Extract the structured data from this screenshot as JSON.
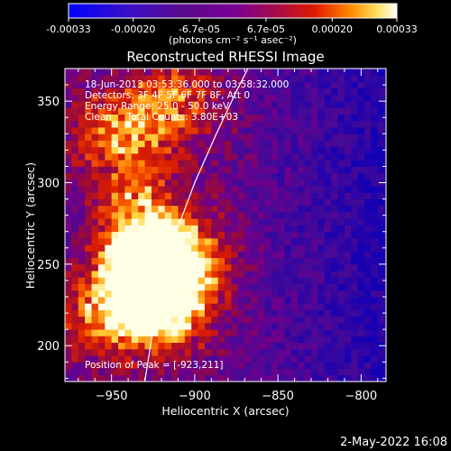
{
  "colorbar": {
    "ticks": [
      "-0.00033",
      "-0.00020",
      "-6.7e-05",
      "6.7e-05",
      "0.00020",
      "0.00033"
    ],
    "ticks_values": [
      -0.00033,
      -0.0002,
      -6.7e-05,
      6.7e-05,
      0.0002,
      0.00033
    ],
    "range": [
      -0.00033,
      0.00033
    ],
    "unit_label": "(photons cm⁻² s⁻¹ asec⁻²)",
    "colors": [
      "#0000ff",
      "#5a0a8c",
      "#780096",
      "#cc1a0a",
      "#ff6a00",
      "#ffd040",
      "#ffffff"
    ]
  },
  "header": {
    "title": "Reconstructed RHESSI Image",
    "date_footer": "2-May-2022 16:08"
  },
  "annotations": {
    "time_range": "18-Jun-2013 03:53:36.000 to 03:58:32.000",
    "detectors": "Detectors: 3F 4F 5F 6F 7F 8F, Att 0",
    "energy": "Energy Range: 25.0 - 50.0 keV",
    "clean": "Clean     Total Counts: 3.80E+03",
    "peak": "Position of Peak = [-923,211]"
  },
  "chart_data": {
    "type": "heatmap",
    "title": "Reconstructed RHESSI Image",
    "xlabel": "Heliocentric X (arcsec)",
    "ylabel": "Heliocentric Y (arcsec)",
    "xlim": [
      -978,
      -785
    ],
    "ylim": [
      178,
      370
    ],
    "x_ticks": [
      -950,
      -900,
      -850,
      -800
    ],
    "y_ticks": [
      200,
      250,
      300,
      350
    ],
    "x_tick_labels": [
      "−950",
      "−900",
      "−850",
      "−800"
    ],
    "y_tick_labels": [
      "200",
      "250",
      "300",
      "350"
    ],
    "peak_position": [
      -923,
      211
    ],
    "limb_curve": [
      [
        -930,
        178
      ],
      [
        -925,
        210
      ],
      [
        -919,
        240
      ],
      [
        -911,
        270
      ],
      [
        -900,
        300
      ],
      [
        -887,
        330
      ],
      [
        -875,
        356
      ],
      [
        -868,
        370
      ]
    ],
    "hot_regions": [
      {
        "x": -930,
        "y": 255,
        "intensity": 0.95
      },
      {
        "x": -920,
        "y": 220,
        "intensity": 0.9
      },
      {
        "x": -940,
        "y": 235,
        "intensity": 0.75
      },
      {
        "x": -905,
        "y": 250,
        "intensity": 0.6
      },
      {
        "x": -950,
        "y": 330,
        "intensity": 0.55
      },
      {
        "x": -915,
        "y": 345,
        "intensity": 0.6
      },
      {
        "x": -935,
        "y": 290,
        "intensity": 0.45
      },
      {
        "x": -960,
        "y": 210,
        "intensity": 0.4
      }
    ],
    "grid": false
  }
}
